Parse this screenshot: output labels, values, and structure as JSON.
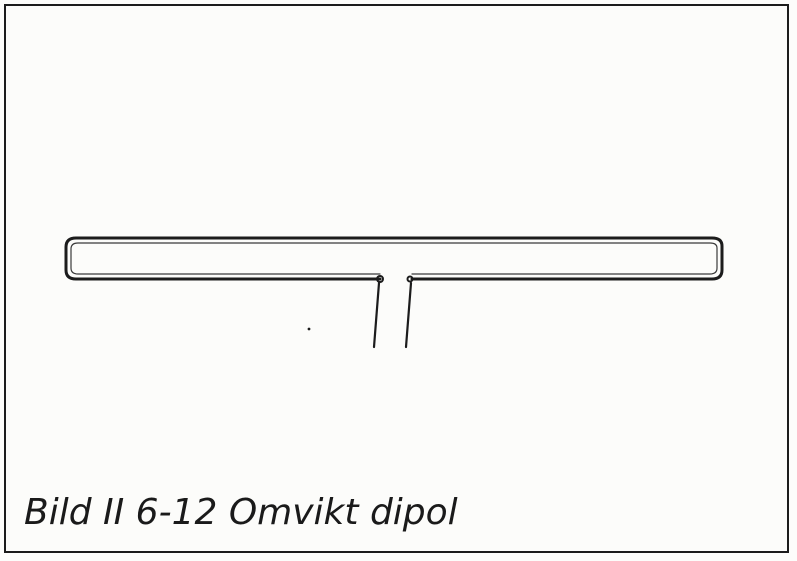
{
  "figure": {
    "caption": "Bild II 6-12  Omvikt dipol",
    "colors": {
      "ink": "#1c1c1c",
      "paper": "#fcfcfa"
    }
  }
}
